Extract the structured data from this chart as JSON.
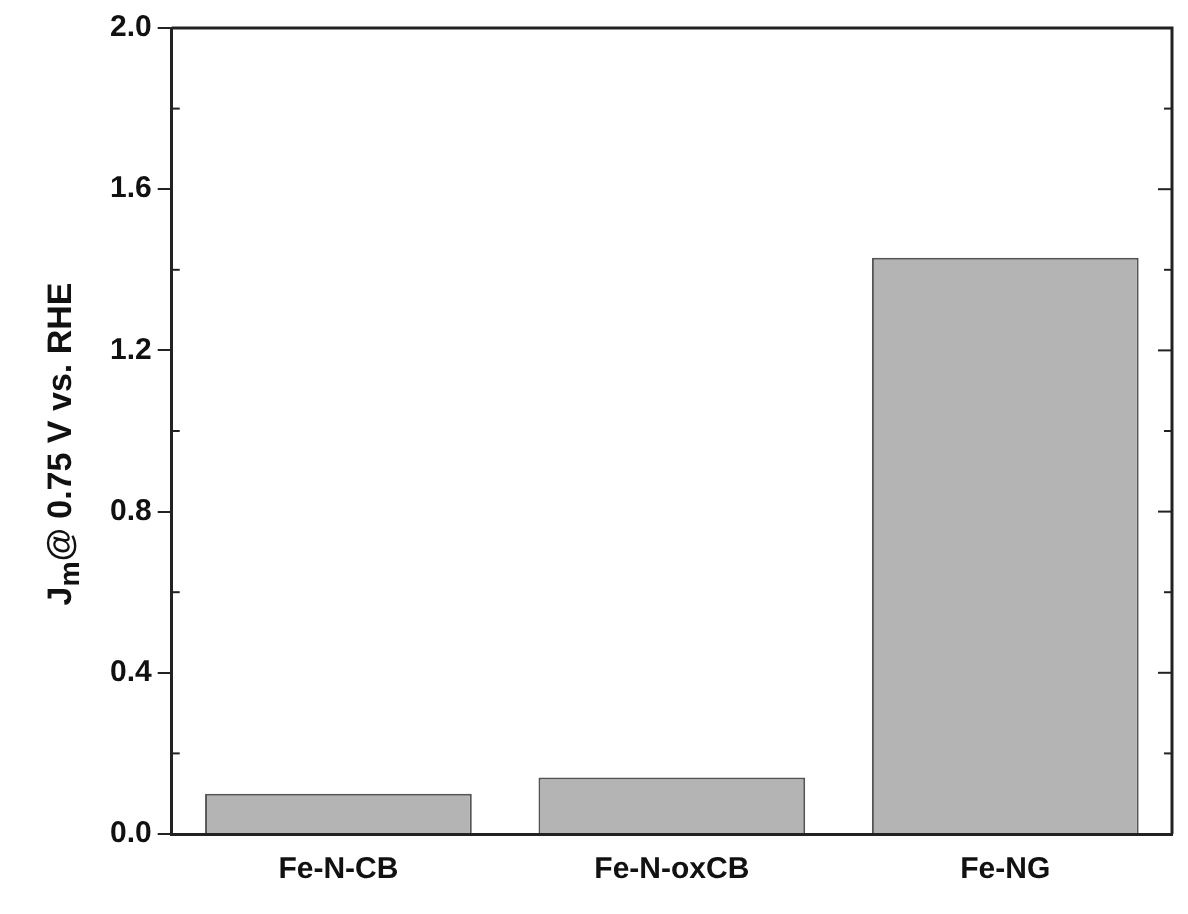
{
  "chart_data": {
    "type": "bar",
    "ylabel": "J$_{m}$@ 0.75 V vs. RHE",
    "categories": [
      "Fe-N-CB",
      "Fe-N-oxCB",
      "Fe-NG"
    ],
    "values": [
      0.1,
      0.14,
      1.43
    ],
    "color": "#b4b4b4",
    "ylim": [
      0,
      2.0
    ],
    "yticks": [
      {
        "value": 0,
        "label": "0.0"
      },
      {
        "value": 0.4,
        "label": "0.4"
      },
      {
        "value": 0.8,
        "label": "0.8"
      },
      {
        "value": 1.2,
        "label": "1.2"
      },
      {
        "value": 1.6,
        "label": "1.6"
      },
      {
        "value": 2.0,
        "label": "2.0"
      }
    ],
    "grid": false
  }
}
